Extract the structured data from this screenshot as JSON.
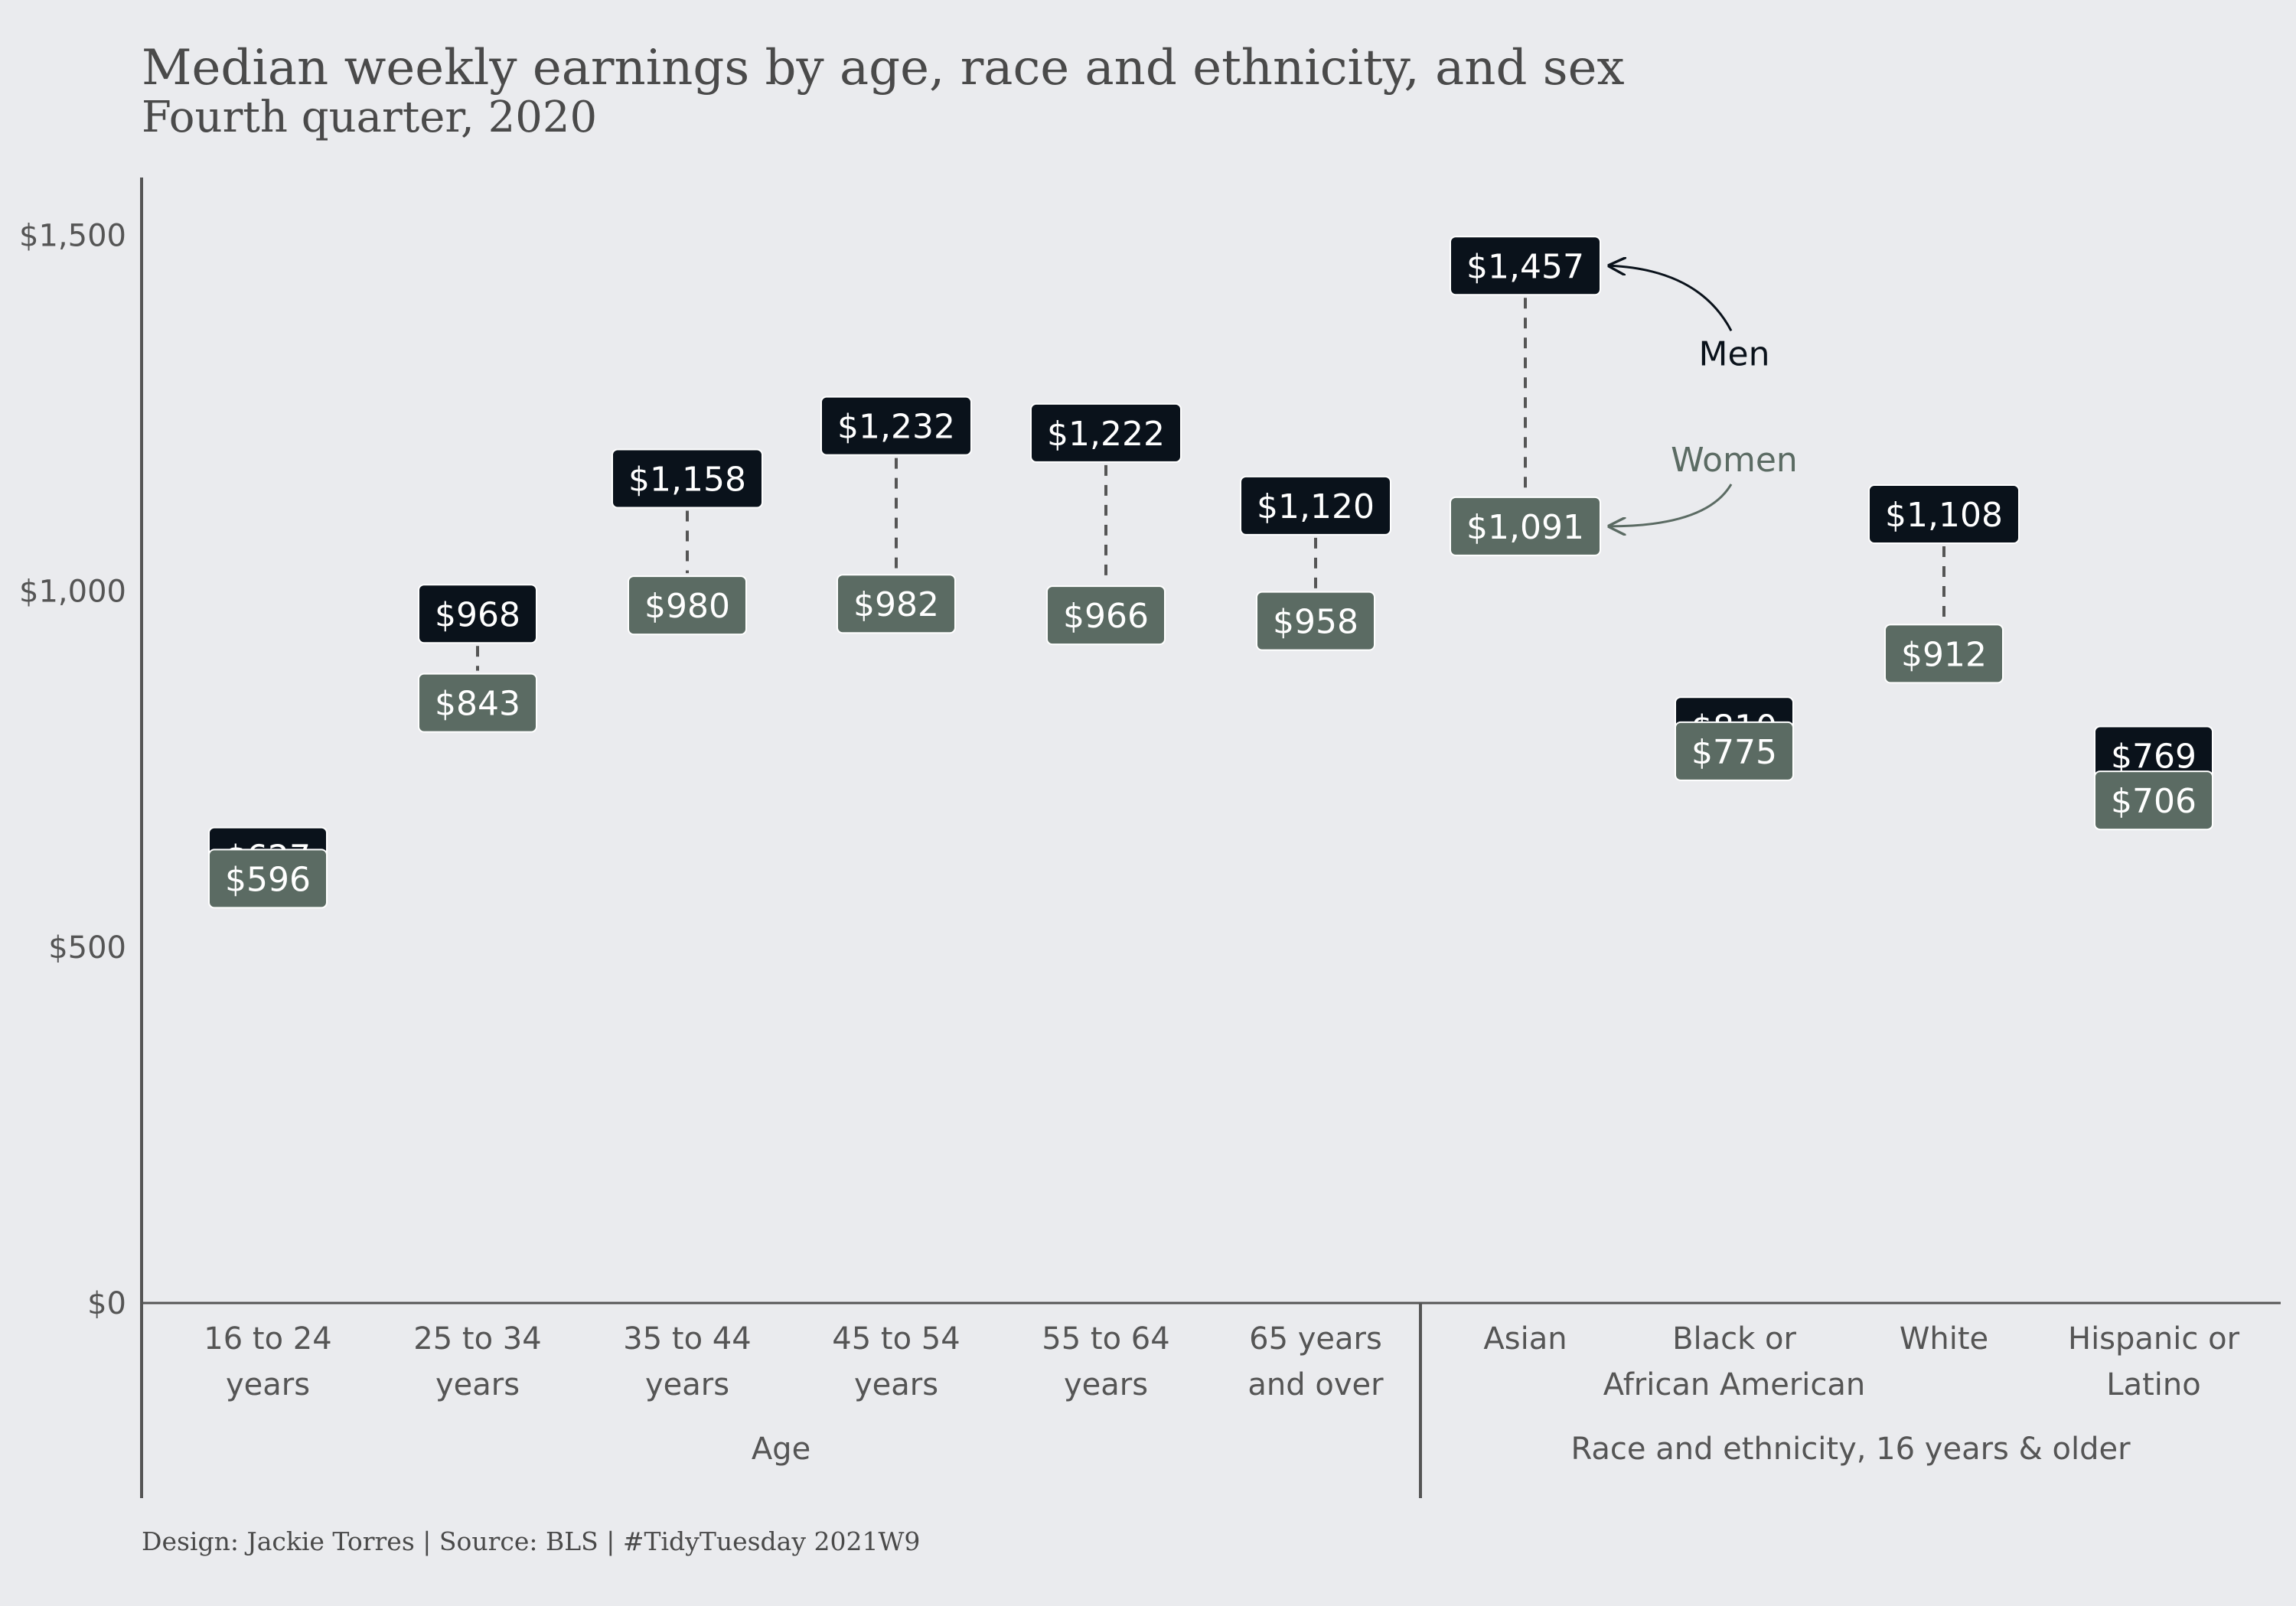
{
  "chart_data": {
    "type": "dumbbell",
    "title": "Median weekly earnings by age, race and ethnicity, and sex",
    "subtitle": "Fourth quarter, 2020",
    "caption": "Design: Jackie Torres | Source: BLS | #TidyTuesday 2021W9",
    "ylim": [
      0,
      1580
    ],
    "y_ticks": [
      0,
      500,
      1000,
      1500
    ],
    "y_tick_labels": [
      "$0",
      "$500",
      "$1,000",
      "$1,500"
    ],
    "grid": false,
    "groups": [
      {
        "label": "Age",
        "categories": [
          [
            "16 to 24",
            "years"
          ],
          [
            "25 to 34",
            "years"
          ],
          [
            "35 to 44",
            "years"
          ],
          [
            "45 to 54",
            "years"
          ],
          [
            "55 to 64",
            "years"
          ],
          [
            "65 years",
            "and over"
          ]
        ]
      },
      {
        "label": "Race and ethnicity, 16 years & older",
        "categories": [
          [
            "Asian",
            ""
          ],
          [
            "Black or",
            "African American"
          ],
          [
            "White",
            ""
          ],
          [
            "Hispanic or",
            "Latino"
          ]
        ]
      }
    ],
    "series": [
      {
        "values": [
          627,
          968,
          1158,
          1232,
          1222,
          1120,
          1457,
          810,
          1108,
          769
        ],
        "labels": [
          "$627",
          "$968",
          "$1,158",
          "$1,232",
          "$1,222",
          "$1,120",
          "$1,457",
          "$810",
          "$1,108",
          "$769"
        ]
      },
      {
        "values": [
          596,
          843,
          980,
          982,
          966,
          958,
          1091,
          775,
          912,
          706
        ],
        "labels": [
          "$596",
          "$843",
          "$980",
          "$982",
          "$966",
          "$958",
          "$1,091",
          "$775",
          "$912",
          "$706"
        ]
      }
    ],
    "annotations": [
      "Men",
      "Women"
    ]
  },
  "colors": {
    "background": "#EAEBEE",
    "men": "#0A121B",
    "women": "#5B6B63",
    "axis": "#555555",
    "text": "#4A4A4A"
  }
}
